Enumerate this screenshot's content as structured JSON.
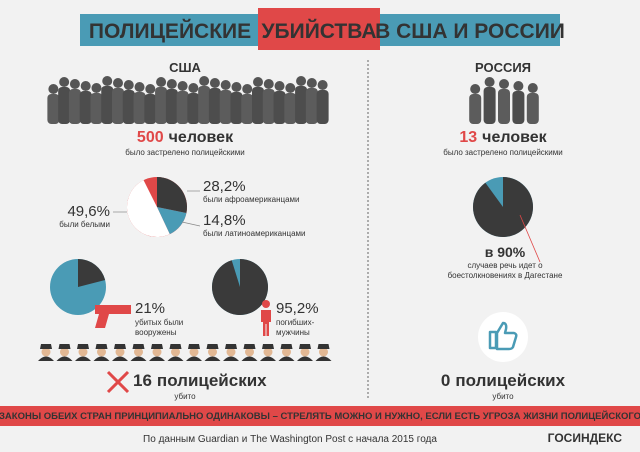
{
  "title": {
    "parts": [
      "ПОЛИЦЕЙСКИЕ",
      "УБИЙСТВА",
      "В США И РОССИИ"
    ]
  },
  "usa": {
    "heading": "США",
    "killed": {
      "count": 500,
      "unit": "человек",
      "note": "было застрелено полицейскими"
    },
    "ethnicity": {
      "values": [
        28.2,
        14.8,
        49.6
      ],
      "value_labels": [
        "28,2%",
        "14,8%",
        "49,6%"
      ],
      "labels": [
        "были афроамериканцами",
        "были латиноамериканцами",
        "были белыми"
      ]
    },
    "armed": {
      "value": 21,
      "value_label": "21%",
      "note": [
        "убитых были",
        "вооружены"
      ]
    },
    "male": {
      "value": 95.2,
      "value_label": "95,2%",
      "note": [
        "погибших-",
        "мужчины"
      ]
    },
    "police": {
      "count": 16,
      "label": "полицейских",
      "note": "убито"
    }
  },
  "russia": {
    "heading": "РОССИЯ",
    "killed": {
      "count": 13,
      "unit": "человек",
      "note": "было застрелено полицейскими"
    },
    "dagestan": {
      "value": 90,
      "value_label": "в 90%",
      "note": [
        "случаев речь идет о",
        "боестолкновениях в Дагестане"
      ]
    },
    "police": {
      "count": 0,
      "label": "полицейских",
      "note": "убито"
    }
  },
  "footer": {
    "banner": "ЗАКОНЫ ОБЕИХ СТРАН ПРИНЦИПИАЛЬНО ОДИНАКОВЫ – СТРЕЛЯТЬ МОЖНО И НУЖНО, ЕСЛИ ЕСТЬ УГРОЗА ЖИЗНИ ПОЛИЦЕЙСКОГО",
    "source": "По данным Guardian и The Washington Post с начала 2015 года",
    "logo": "ГОСИНДЕКС"
  }
}
